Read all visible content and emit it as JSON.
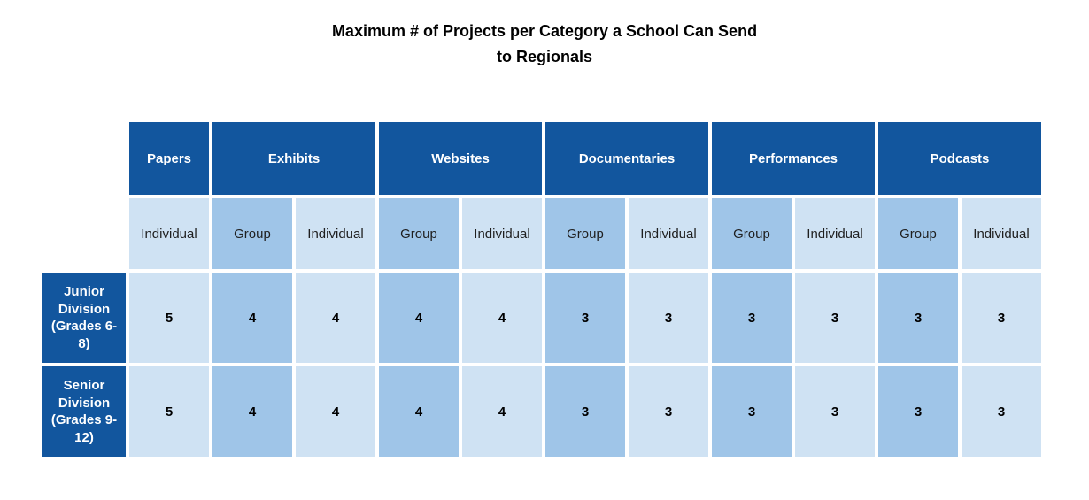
{
  "title": {
    "line1": "Maximum # of Projects per Category a School Can Send",
    "line2": "to Regionals"
  },
  "colors": {
    "background": "#FFFFFF",
    "header_bg": "#12569E",
    "header_text": "#FFFFFF",
    "group_bg": "#9FC5E8",
    "individual_bg": "#CFE2F3",
    "value_text": "#000000"
  },
  "table": {
    "categories": [
      {
        "label": "Papers",
        "span": 1
      },
      {
        "label": "Exhibits",
        "span": 2
      },
      {
        "label": "Websites",
        "span": 2
      },
      {
        "label": "Documentaries",
        "span": 2
      },
      {
        "label": "Performances",
        "span": 2
      },
      {
        "label": "Podcasts",
        "span": 2
      }
    ],
    "subheaders": [
      "Individual",
      "Group",
      "Individual",
      "Group",
      "Individual",
      "Group",
      "Individual",
      "Group",
      "Individual",
      "Group",
      "Individual"
    ],
    "rows": [
      {
        "label": "Junior Division (Grades 6-8)",
        "values": [
          "5",
          "4",
          "4",
          "4",
          "4",
          "3",
          "3",
          "3",
          "3",
          "3",
          "3"
        ]
      },
      {
        "label": "Senior Division (Grades 9-12)",
        "values": [
          "5",
          "4",
          "4",
          "4",
          "4",
          "3",
          "3",
          "3",
          "3",
          "3",
          "3"
        ]
      }
    ]
  },
  "chart_data": {
    "type": "table",
    "title": "Maximum # of Projects per Category a School Can Send to Regionals",
    "column_groups": [
      "Papers",
      "Exhibits",
      "Websites",
      "Documentaries",
      "Performances",
      "Podcasts"
    ],
    "columns": [
      "Papers Individual",
      "Exhibits Group",
      "Exhibits Individual",
      "Websites Group",
      "Websites Individual",
      "Documentaries Group",
      "Documentaries Individual",
      "Performances Group",
      "Performances Individual",
      "Podcasts Group",
      "Podcasts Individual"
    ],
    "rows": [
      {
        "label": "Junior Division (Grades 6-8)",
        "values": [
          5,
          4,
          4,
          4,
          4,
          3,
          3,
          3,
          3,
          3,
          3
        ]
      },
      {
        "label": "Senior Division (Grades 9-12)",
        "values": [
          5,
          4,
          4,
          4,
          4,
          3,
          3,
          3,
          3,
          3,
          3
        ]
      }
    ]
  }
}
